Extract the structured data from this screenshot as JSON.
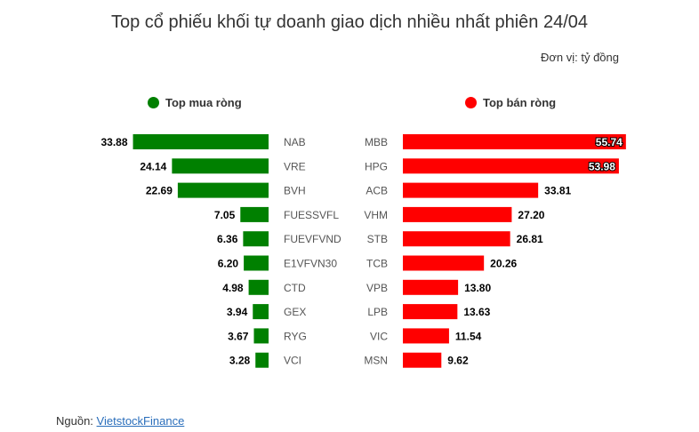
{
  "chart_data": {
    "type": "bar",
    "title": "Top cổ phiếu khối tự doanh giao dịch nhiều nhất phiên 24/04",
    "unit": "Đơn vị: tỷ đồng",
    "legend_placement": "top",
    "buy": {
      "name": "Top mua ròng",
      "color": "#008000",
      "categories": [
        "NAB",
        "VRE",
        "BVH",
        "FUESSVFL",
        "FUEVFVND",
        "E1VFVN30",
        "CTD",
        "GEX",
        "RYG",
        "VCI"
      ],
      "values": [
        33.88,
        24.14,
        22.69,
        7.05,
        6.36,
        6.2,
        4.98,
        3.94,
        3.67,
        3.28
      ],
      "labels": [
        "33.88",
        "24.14",
        "22.69",
        "7.05",
        "6.36",
        "6.20",
        "4.98",
        "3.94",
        "3.67",
        "3.28"
      ]
    },
    "sell": {
      "name": "Top bán ròng",
      "color": "#ff0000",
      "categories": [
        "MBB",
        "HPG",
        "ACB",
        "VHM",
        "STB",
        "TCB",
        "VPB",
        "LPB",
        "VIC",
        "MSN"
      ],
      "values": [
        55.74,
        53.98,
        33.81,
        27.2,
        26.81,
        20.26,
        13.8,
        13.63,
        11.54,
        9.62
      ],
      "labels": [
        "55.74",
        "53.98",
        "33.81",
        "27.20",
        "26.81",
        "20.26",
        "13.80",
        "13.63",
        "11.54",
        "9.62"
      ]
    }
  },
  "source": {
    "label": "Nguồn: ",
    "link_text": "VietstockFinance"
  }
}
